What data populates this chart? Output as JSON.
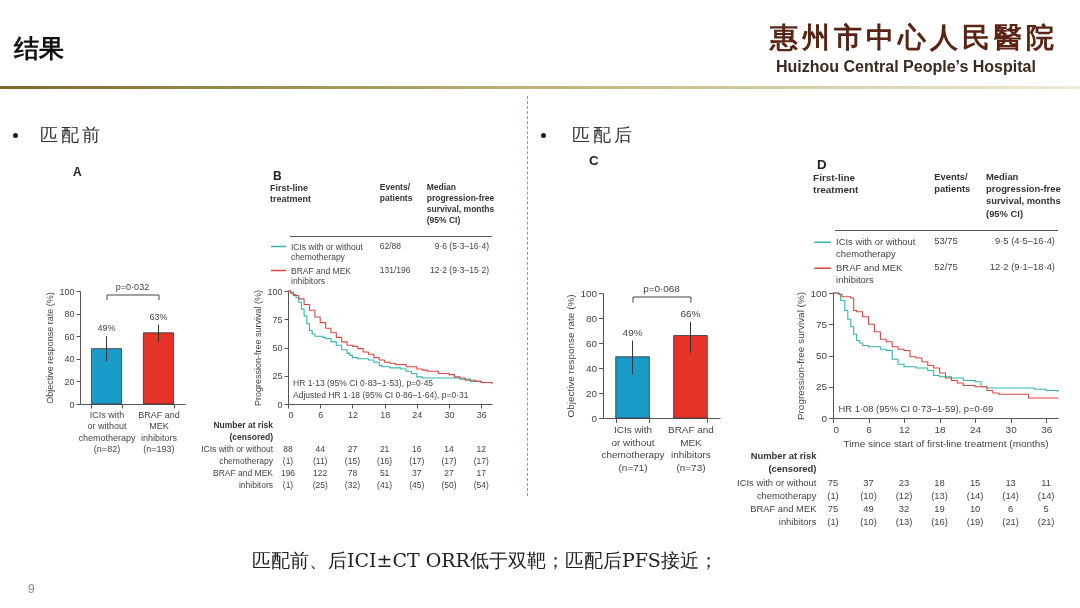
{
  "chart_data": [
    {
      "type": "other",
      "title": "结果",
      "annotations": [
        "匹配前",
        "匹配后",
        "匹配前、后ICI±CT ORR低于双靶；匹配后PFS接近；",
        "9",
        "惠州市中心人民醫院",
        "Huizhou Central People’s Hospital"
      ]
    },
    {
      "type": "bar",
      "title": "A",
      "categories": [
        "ICIs with or without chemotherapy (n=82)",
        "BRAF and MEK inhibitors (n=193)"
      ],
      "values": [
        49,
        63
      ],
      "colors": [
        "#1a9ac6",
        "#e5332a"
      ],
      "errors": [
        [
          38,
          60
        ],
        [
          55,
          70
        ]
      ],
      "value_labels": [
        "49%",
        "63%"
      ],
      "ylabel": "Objective response rate (%)",
      "ylim": [
        0,
        100
      ],
      "yticks": [
        0,
        20,
        40,
        60,
        80,
        100
      ],
      "annotations": [
        "p=0·032"
      ]
    },
    {
      "type": "step",
      "title": "B",
      "legend": "top",
      "legend_title": "First-line treatment",
      "ylabel": "Progression-free survival (%)",
      "xlim": [
        0,
        38
      ],
      "xticks": [
        0,
        6,
        12,
        18,
        24,
        30,
        36
      ],
      "ylim": [
        0,
        100
      ],
      "yticks": [
        0,
        25,
        50,
        75,
        100
      ],
      "series": [
        {
          "name": "ICIs with or without chemotherapy",
          "color": "#35b3ad",
          "x": [
            0,
            0.5,
            1,
            1.5,
            2,
            2.5,
            3,
            3.5,
            4,
            4.5,
            5,
            6.5,
            7,
            8,
            9,
            10,
            11,
            11.5,
            12,
            13,
            15,
            16,
            17,
            17.5,
            19,
            21,
            22,
            23,
            24,
            25,
            31,
            32,
            34,
            36,
            38
          ],
          "values": [
            100,
            99,
            97,
            94,
            90,
            84,
            78,
            71,
            65,
            62,
            60,
            59,
            58,
            55,
            52,
            48,
            45,
            43,
            41,
            40,
            39,
            37,
            34,
            33,
            32,
            31,
            29,
            27,
            24,
            23,
            23,
            22,
            20,
            19,
            19
          ]
        },
        {
          "name": "BRAF and MEK inhibitors",
          "color": "#d9473f",
          "x": [
            0,
            0.5,
            1,
            2,
            3,
            4,
            5,
            6,
            7,
            8,
            9,
            10,
            11,
            12,
            13,
            14,
            15,
            16,
            17,
            18,
            19,
            20,
            22,
            24,
            25,
            26,
            28,
            30,
            31,
            32,
            33,
            35,
            36,
            38
          ],
          "values": [
            100,
            98,
            96,
            93,
            88,
            83,
            77,
            72,
            67,
            63,
            59,
            55,
            52,
            51,
            49,
            46,
            44,
            41,
            39,
            37,
            36,
            35,
            33,
            31,
            30,
            29,
            27,
            26,
            24,
            23,
            21,
            20,
            19,
            18
          ]
        }
      ],
      "annotations": [
        "Events/ patients",
        "Median progression-free survival, months (95% CI)",
        "62/88",
        "9·6 (5·3–16·4)",
        "131/196",
        "12·2 (9·3–15·2)",
        "HR 1·13 (95% CI 0·83–1·53), p=0·45",
        "Adjusted HR 1·18 (95% CI 0·86–1·64), p=0·31",
        "Number at risk (censored)",
        "ICIs with or without",
        "88",
        "44",
        "27",
        "21",
        "16",
        "14",
        "12",
        "chemotherapy",
        "(1)",
        "(11)",
        "(15)",
        "(16)",
        "(17)",
        "(17)",
        "(17)",
        "BRAF and MEK",
        "196",
        "122",
        "78",
        "51",
        "37",
        "27",
        "17",
        "inhibitors",
        "(1)",
        "(25)",
        "(32)",
        "(41)",
        "(45)",
        "(50)",
        "(54)"
      ]
    },
    {
      "type": "bar",
      "title": "C",
      "categories": [
        "ICIs with or without chemotherapy (n=71)",
        "BRAF and MEK inhibitors (n=73)"
      ],
      "values": [
        49,
        66
      ],
      "colors": [
        "#1a9ac6",
        "#e5332a"
      ],
      "errors": [
        [
          35,
          62
        ],
        [
          52,
          77
        ]
      ],
      "value_labels": [
        "49%",
        "66%"
      ],
      "ylabel": "Objective response rate (%)",
      "ylim": [
        0,
        100
      ],
      "yticks": [
        0,
        20,
        40,
        60,
        80,
        100
      ],
      "annotations": [
        "p=0·068"
      ]
    },
    {
      "type": "step",
      "title": "D",
      "legend": "top",
      "legend_title": "First-line treatment",
      "xlabel": "Time since start of first-line treatment (months)",
      "ylabel": "Progression-free survival (%)",
      "xlim": [
        0,
        38
      ],
      "xticks": [
        0,
        6,
        12,
        18,
        24,
        30,
        36
      ],
      "ylim": [
        0,
        100
      ],
      "yticks": [
        0,
        25,
        50,
        75,
        100
      ],
      "series": [
        {
          "name": "ICIs with or without chemotherapy",
          "color": "#35b3ad",
          "x": [
            0,
            1,
            1.3,
            2,
            2.5,
            3,
            3.5,
            4,
            4.5,
            5,
            6,
            8,
            9,
            10,
            11,
            12,
            14,
            16,
            17,
            18,
            20,
            22,
            24,
            25,
            26,
            34,
            36,
            38
          ],
          "values": [
            100,
            99,
            94,
            86,
            79,
            73,
            67,
            62,
            60,
            58,
            57,
            55,
            54,
            47,
            43,
            41,
            40,
            38,
            34,
            33,
            32,
            30,
            29,
            25,
            24,
            23,
            22,
            21
          ]
        },
        {
          "name": "BRAF and MEK inhibitors",
          "color": "#d9473f",
          "x": [
            0,
            1,
            1.5,
            3,
            3.5,
            4,
            5,
            6,
            7,
            8,
            9,
            10,
            11,
            12,
            13,
            14,
            15,
            16,
            17,
            18,
            19,
            20,
            21,
            22,
            24,
            26,
            27,
            28,
            33,
            38
          ],
          "values": [
            100,
            99,
            97,
            96,
            86,
            85,
            81,
            75,
            69,
            63,
            61,
            57,
            55,
            54,
            49,
            48,
            45,
            42,
            40,
            36,
            32,
            30,
            28,
            26,
            25,
            22,
            20,
            19,
            16,
            16
          ]
        }
      ],
      "annotations": [
        "Events/ patients",
        "Median progression-free survival, months (95% CI)",
        "53/75",
        "9·5 (4·5–16·4)",
        "52/75",
        "12·2 (9·1–18·4)",
        "HR 1·08 (95% CI 0·73–1·59), p=0·69",
        "Number at risk (censored)",
        "ICIs with or without",
        "75",
        "37",
        "23",
        "18",
        "15",
        "13",
        "11",
        "chemotherapy",
        "(1)",
        "(10)",
        "(12)",
        "(13)",
        "(14)",
        "(14)",
        "(14)",
        "BRAF and MEK",
        "75",
        "49",
        "32",
        "19",
        "10",
        "6",
        "5",
        "inhibitors",
        "(1)",
        "(10)",
        "(13)",
        "(16)",
        "(19)",
        "(21)",
        "(21)"
      ]
    }
  ]
}
